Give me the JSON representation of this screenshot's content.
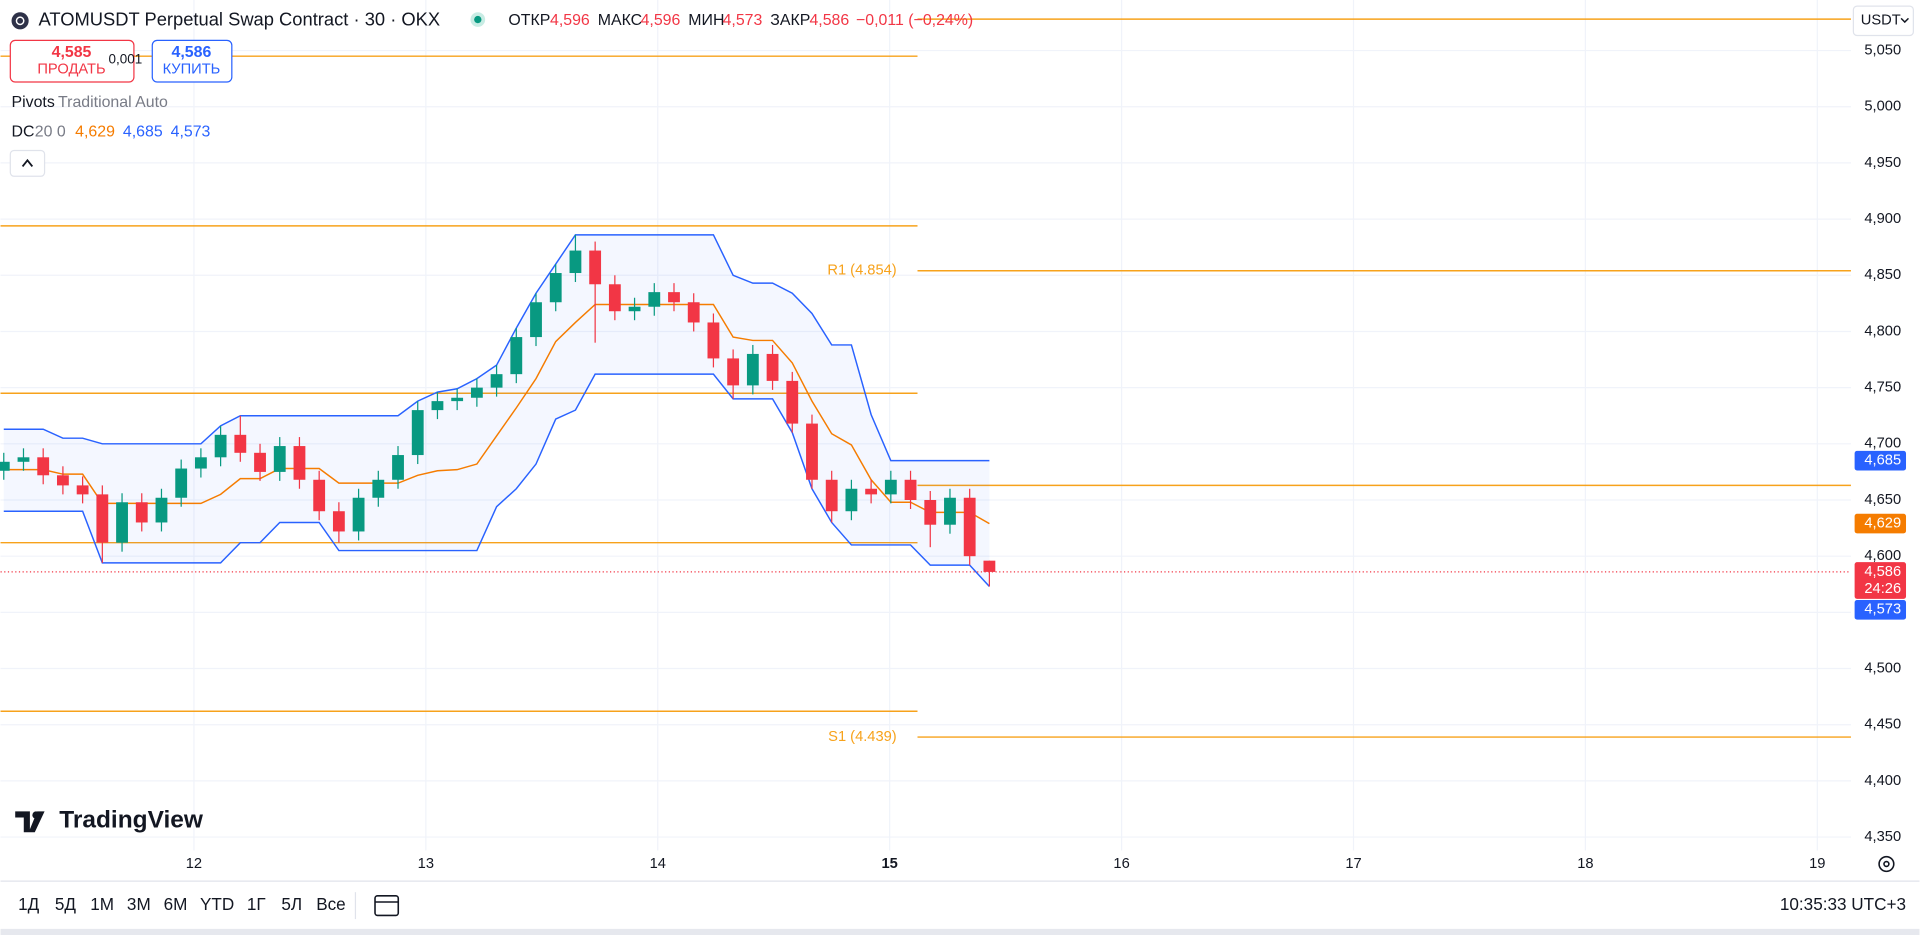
{
  "header": {
    "title": "ATOMUSDT Perpetual Swap Contract · 30 · OKX",
    "ohlc": [
      {
        "label": "ОТКР",
        "value": "4,596"
      },
      {
        "label": "МАКС",
        "value": "4,596"
      },
      {
        "label": "МИН",
        "value": "4,573"
      },
      {
        "label": "ЗАКР",
        "value": "4,586"
      }
    ],
    "change": "−0,011 (−0,24%)",
    "sell": {
      "price": "4,585",
      "label": "ПРОДАТЬ"
    },
    "spread": "0,001",
    "buy": {
      "price": "4,586",
      "label": "КУПИТЬ"
    },
    "indicators": [
      {
        "name": "Pivots",
        "params": "Traditional Auto"
      },
      {
        "name": "DC",
        "params": "20 0",
        "values": [
          "4,629",
          "4,685",
          "4,573"
        ]
      }
    ],
    "currency": "USDT"
  },
  "logo": "TradingView",
  "toolbar": {
    "ranges": [
      "1Д",
      "5Д",
      "1М",
      "3М",
      "6М",
      "YTD",
      "1Г",
      "5Л",
      "Все"
    ],
    "time": "10:35:33 UTC+3"
  },
  "chart_data": {
    "type": "candlestick",
    "xlim": [
      11.166,
      19.145
    ],
    "xticks": [
      12,
      13,
      14,
      15,
      16,
      17,
      18,
      19
    ],
    "ylim": [
      4.338,
      5.095
    ],
    "yticks": [
      {
        "value": 5.05,
        "label": "5,050"
      },
      {
        "value": 5.0,
        "label": "5,000"
      },
      {
        "value": 4.95,
        "label": "4,950"
      },
      {
        "value": 4.9,
        "label": "4,900"
      },
      {
        "value": 4.85,
        "label": "4,850"
      },
      {
        "value": 4.8,
        "label": "4,800"
      },
      {
        "value": 4.75,
        "label": "4,750"
      },
      {
        "value": 4.7,
        "label": "4,700"
      },
      {
        "value": 4.65,
        "label": "4,650"
      },
      {
        "value": 4.6,
        "label": "4,600"
      },
      {
        "value": 4.55,
        "label": "4,550"
      },
      {
        "value": 4.5,
        "label": "4,500"
      },
      {
        "value": 4.45,
        "label": "4,450"
      },
      {
        "value": 4.4,
        "label": "4,400"
      },
      {
        "value": 4.35,
        "label": "4,350"
      }
    ],
    "grid": true,
    "up_color": "#089981",
    "down_color": "#f23645",
    "x": [
      11.18,
      11.265,
      11.35,
      11.435,
      11.52,
      11.605,
      11.69,
      11.775,
      11.86,
      11.945,
      12.03,
      12.115,
      12.2,
      12.285,
      12.37,
      12.455,
      12.54,
      12.625,
      12.71,
      12.795,
      12.88,
      12.965,
      13.05,
      13.135,
      13.22,
      13.305,
      13.39,
      13.475,
      13.56,
      13.645,
      13.73,
      13.815,
      13.9,
      13.985,
      14.07,
      14.155,
      14.24,
      14.325,
      14.41,
      14.495,
      14.58,
      14.665,
      14.75,
      14.835,
      14.92,
      15.005,
      15.09,
      15.175,
      15.26,
      15.345,
      15.43
    ],
    "open": [
      4.676,
      4.684,
      4.688,
      4.672,
      4.663,
      4.655,
      4.612,
      4.648,
      4.63,
      4.652,
      4.678,
      4.688,
      4.708,
      4.692,
      4.675,
      4.698,
      4.668,
      4.64,
      4.622,
      4.652,
      4.668,
      4.69,
      4.73,
      4.738,
      4.741,
      4.75,
      4.762,
      4.795,
      4.826,
      4.852,
      4.872,
      4.842,
      4.818,
      4.822,
      4.835,
      4.826,
      4.808,
      4.776,
      4.752,
      4.78,
      4.756,
      4.718,
      4.668,
      4.64,
      4.66,
      4.655,
      4.668,
      4.65,
      4.628,
      4.652,
      4.596
    ],
    "high": [
      4.692,
      4.696,
      4.696,
      4.68,
      4.671,
      4.663,
      4.656,
      4.656,
      4.66,
      4.686,
      4.696,
      4.716,
      4.725,
      4.7,
      4.706,
      4.706,
      4.676,
      4.648,
      4.66,
      4.676,
      4.698,
      4.738,
      4.746,
      4.749,
      4.758,
      4.77,
      4.803,
      4.834,
      4.86,
      4.886,
      4.88,
      4.85,
      4.83,
      4.843,
      4.843,
      4.834,
      4.816,
      4.784,
      4.788,
      4.788,
      4.764,
      4.726,
      4.676,
      4.668,
      4.668,
      4.676,
      4.676,
      4.658,
      4.66,
      4.66,
      4.596
    ],
    "low": [
      4.668,
      4.676,
      4.664,
      4.655,
      4.647,
      4.594,
      4.604,
      4.622,
      4.622,
      4.644,
      4.67,
      4.68,
      4.684,
      4.667,
      4.667,
      4.66,
      4.632,
      4.612,
      4.614,
      4.644,
      4.66,
      4.682,
      4.722,
      4.73,
      4.733,
      4.742,
      4.754,
      4.787,
      4.818,
      4.844,
      4.79,
      4.81,
      4.81,
      4.814,
      4.818,
      4.8,
      4.768,
      4.74,
      4.744,
      4.748,
      4.71,
      4.66,
      4.63,
      4.632,
      4.647,
      4.647,
      4.642,
      4.608,
      4.62,
      4.592,
      4.573
    ],
    "close": [
      4.684,
      4.688,
      4.672,
      4.663,
      4.655,
      4.612,
      4.648,
      4.63,
      4.652,
      4.678,
      4.688,
      4.708,
      4.692,
      4.675,
      4.698,
      4.668,
      4.64,
      4.622,
      4.652,
      4.668,
      4.69,
      4.73,
      4.738,
      4.741,
      4.75,
      4.762,
      4.795,
      4.826,
      4.852,
      4.872,
      4.842,
      4.818,
      4.822,
      4.835,
      4.826,
      4.808,
      4.776,
      4.752,
      4.78,
      4.756,
      4.718,
      4.668,
      4.64,
      4.66,
      4.655,
      4.668,
      4.65,
      4.628,
      4.652,
      4.6,
      4.586
    ],
    "channel": {
      "upper_color": "#2962ff",
      "middle_color": "#f57c00",
      "lower_color": "#2962ff",
      "fill": "#2962ff",
      "upper": [
        4.713,
        4.713,
        4.713,
        4.705,
        4.705,
        4.7,
        4.7,
        4.7,
        4.7,
        4.7,
        4.7,
        4.716,
        4.725,
        4.725,
        4.725,
        4.725,
        4.725,
        4.725,
        4.725,
        4.725,
        4.725,
        4.738,
        4.746,
        4.749,
        4.758,
        4.77,
        4.803,
        4.834,
        4.86,
        4.886,
        4.886,
        4.886,
        4.886,
        4.886,
        4.886,
        4.886,
        4.886,
        4.85,
        4.843,
        4.843,
        4.834,
        4.816,
        4.788,
        4.788,
        4.726,
        4.685,
        4.685,
        4.685,
        4.685,
        4.685,
        4.685
      ],
      "middle": [
        4.677,
        4.677,
        4.677,
        4.673,
        4.673,
        4.647,
        4.647,
        4.647,
        4.647,
        4.647,
        4.647,
        4.655,
        4.669,
        4.669,
        4.678,
        4.678,
        4.678,
        4.665,
        4.665,
        4.665,
        4.665,
        4.672,
        4.676,
        4.677,
        4.682,
        4.707,
        4.732,
        4.758,
        4.791,
        4.808,
        4.824,
        4.824,
        4.824,
        4.824,
        4.824,
        4.824,
        4.824,
        4.795,
        4.792,
        4.792,
        4.772,
        4.738,
        4.709,
        4.699,
        4.668,
        4.648,
        4.648,
        4.639,
        4.639,
        4.639,
        4.629
      ],
      "lower": [
        4.64,
        4.64,
        4.64,
        4.64,
        4.64,
        4.594,
        4.594,
        4.594,
        4.594,
        4.594,
        4.594,
        4.594,
        4.612,
        4.612,
        4.63,
        4.63,
        4.63,
        4.605,
        4.605,
        4.605,
        4.605,
        4.605,
        4.605,
        4.605,
        4.605,
        4.644,
        4.66,
        4.682,
        4.722,
        4.73,
        4.762,
        4.762,
        4.762,
        4.762,
        4.762,
        4.762,
        4.762,
        4.74,
        4.74,
        4.74,
        4.71,
        4.66,
        4.63,
        4.61,
        4.61,
        4.61,
        4.61,
        4.592,
        4.592,
        4.592,
        4.573
      ]
    },
    "pivot_color": "#f7a21b",
    "pivots": [
      {
        "value": 5.045,
        "from": 11.166,
        "to": 15.12
      },
      {
        "value": 4.894,
        "from": 11.166,
        "to": 15.12
      },
      {
        "value": 4.745,
        "from": 11.166,
        "to": 15.12
      },
      {
        "value": 4.612,
        "from": 11.166,
        "to": 15.12
      },
      {
        "value": 4.462,
        "from": 11.166,
        "to": 15.12
      },
      {
        "value": 5.078,
        "from": 15.12,
        "to": 19.145
      },
      {
        "value": 4.854,
        "from": 15.12,
        "to": 19.145,
        "label": "R1 (4.854)"
      },
      {
        "value": 4.663,
        "from": 15.12,
        "to": 19.145
      },
      {
        "value": 4.439,
        "from": 15.12,
        "to": 19.145,
        "label": "S1 (4.439)"
      }
    ],
    "price_line": {
      "value": 4.586,
      "color": "#f23645"
    },
    "price_labels": [
      {
        "value": 4.685,
        "label": "4,685",
        "color": "#2962ff"
      },
      {
        "value": 4.629,
        "label": "4,629",
        "color": "#f57c00"
      },
      {
        "value": 4.586,
        "label": "4,586",
        "sub": "24:26",
        "color": "#f23645"
      },
      {
        "value": 4.573,
        "label": "4,573",
        "color": "#2962ff"
      }
    ]
  }
}
